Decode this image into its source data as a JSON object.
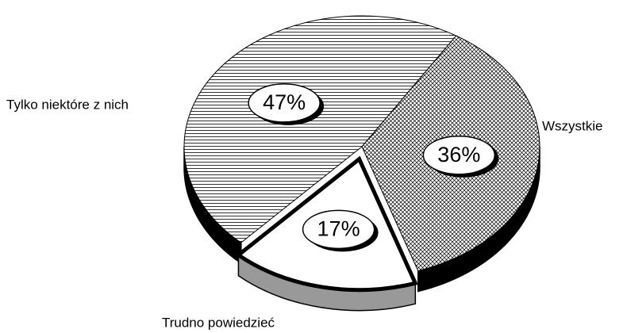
{
  "chart_data": {
    "type": "pie",
    "categories": [
      "Wszystkie",
      "Trudno powiedzieć",
      "Tylko niektóre z nich"
    ],
    "values": [
      36,
      17,
      47
    ],
    "value_labels": [
      "36%",
      "17%",
      "47%"
    ]
  }
}
